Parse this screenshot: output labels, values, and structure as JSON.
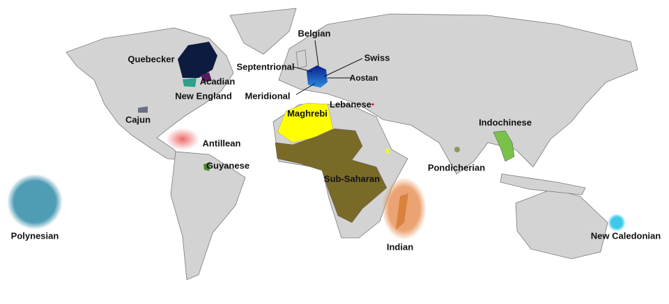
{
  "labels": {
    "quebecker": "Quebecker",
    "acadian": "Acadian",
    "new_england": "New England",
    "cajun": "Cajun",
    "antillean": "Antillean",
    "guyanese": "Guyanese",
    "polynesian": "Polynesian",
    "belgian": "Belgian",
    "swiss": "Swiss",
    "septentrional": "Septentrional",
    "aostan": "Aostan",
    "meridional": "Meridional",
    "lebanese": "Lebanese",
    "maghrebi": "Maghrebi",
    "indochinese": "Indochinese",
    "pondicherian": "Pondicherian",
    "sub_saharan": "Sub-Saharan",
    "indian": "Indian",
    "new_caledonian": "New Caledonian"
  },
  "colors": {
    "land": "#d3d3d3",
    "quebecker": "#0d1b3e",
    "acadian": "#5a1a5e",
    "new_england": "#2fa08a",
    "cajun": "#6a6f85",
    "antillean": "#ec5a5a",
    "guyanese": "#4c8a2a",
    "polynesian": "#4f9db5",
    "france_north": "#0a1e8c",
    "france_south": "#2d8be0",
    "maghrebi": "#ffff00",
    "sub_saharan": "#7a6a28",
    "indochinese": "#78c24a",
    "pondicherian": "#8a9a5a",
    "indian": "#e8935a",
    "new_caledonian": "#3cc8e8"
  }
}
